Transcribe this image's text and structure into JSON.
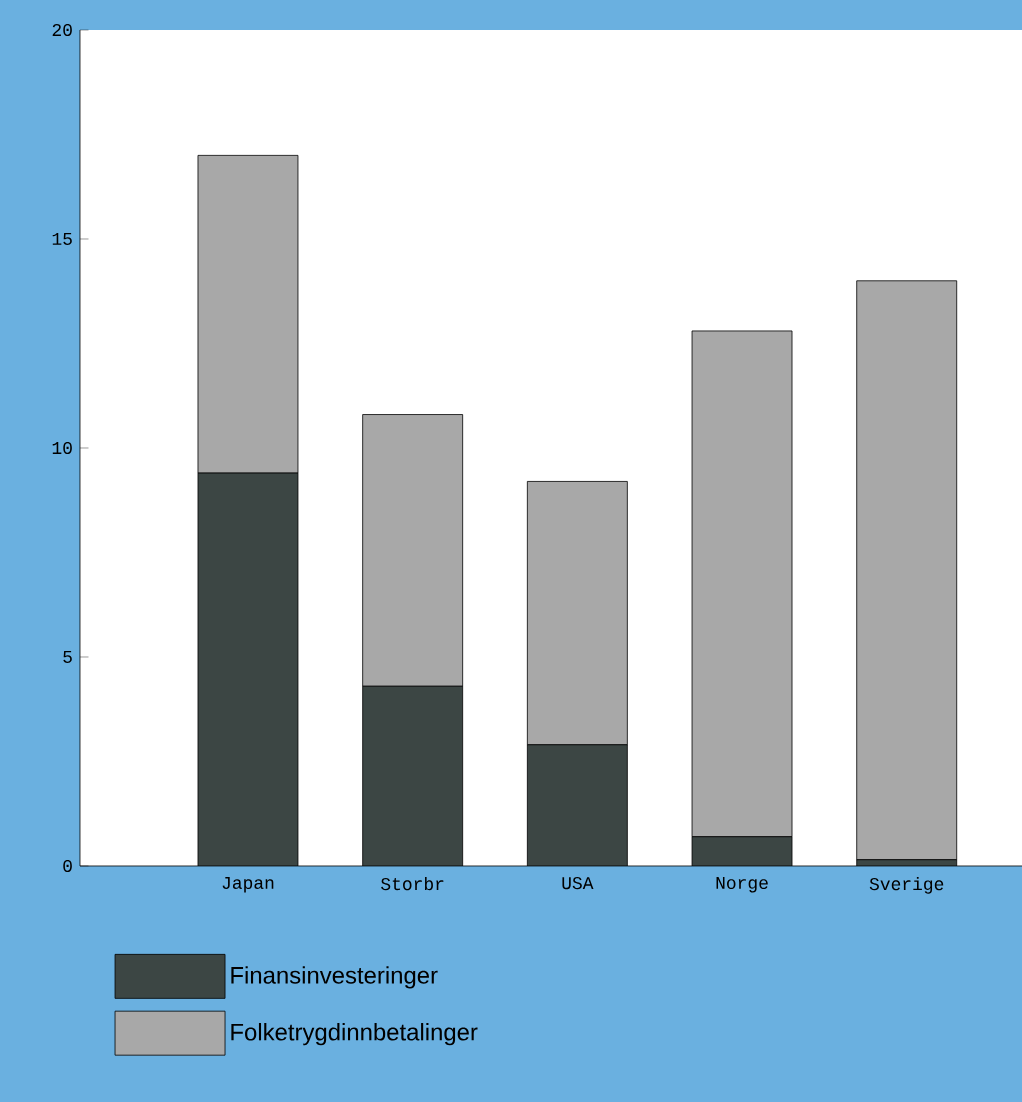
{
  "chart_data": {
    "type": "bar",
    "stacked": true,
    "categories": [
      "Japan",
      "Storbr",
      "USA",
      "Norge",
      "Sverige"
    ],
    "series": [
      {
        "name": "Finansinvesteringer",
        "color": "#3c4644",
        "values": [
          9.4,
          4.3,
          2.9,
          0.7,
          0.15
        ]
      },
      {
        "name": "Folketrygdinnbetalinger",
        "color": "#a8a8a8",
        "values": [
          7.6,
          6.5,
          6.3,
          12.1,
          13.85
        ]
      }
    ],
    "ylim": [
      0,
      20
    ],
    "yticks": [
      0,
      5,
      10,
      15,
      20
    ],
    "grid": false,
    "legend": "bottom left"
  }
}
